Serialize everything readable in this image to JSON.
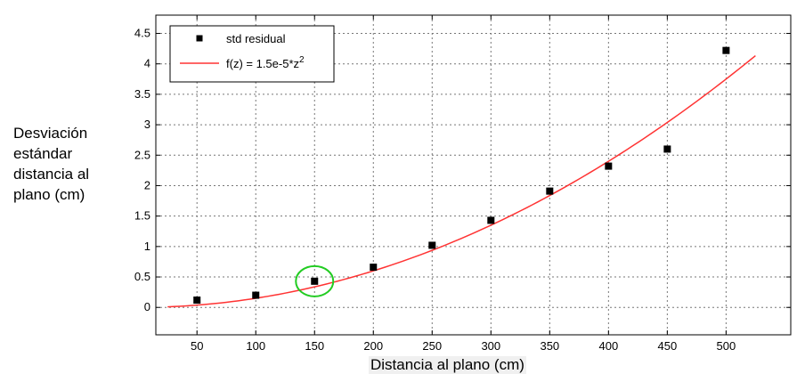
{
  "chart_data": {
    "type": "scatter",
    "title": "",
    "xlabel": "Distancia al plano (cm)",
    "ylabel_lines": [
      "Desviación",
      "estándar",
      "distancia al",
      "plano (cm)"
    ],
    "xlim": [
      15,
      555
    ],
    "ylim": [
      -0.45,
      4.8
    ],
    "x_ticks": [
      50,
      100,
      150,
      200,
      250,
      300,
      350,
      400,
      450,
      500
    ],
    "y_ticks": [
      0,
      0.5,
      1,
      1.5,
      2,
      2.5,
      3,
      3.5,
      4,
      4.5
    ],
    "y_tick_labels": [
      "0",
      "0.5",
      "1",
      "1.5",
      "2",
      "2.5",
      "3",
      "3.5",
      "4",
      "4.5"
    ],
    "grid": true,
    "legend_position": "top-left",
    "series": [
      {
        "name": "std residual",
        "kind": "scatter",
        "marker": "square",
        "color": "#000000",
        "x": [
          50,
          100,
          150,
          200,
          250,
          300,
          350,
          400,
          450,
          500
        ],
        "y": [
          0.12,
          0.2,
          0.43,
          0.66,
          1.02,
          1.43,
          1.91,
          2.32,
          2.6,
          4.22
        ]
      },
      {
        "name": "f(z) = 1.5e-5*z",
        "name_superscript": "2",
        "kind": "line",
        "color": "#ff3333",
        "function": "1.5e-5*z^2",
        "coefficient": 1.5e-05,
        "x_range": [
          25,
          525
        ]
      }
    ],
    "highlight": {
      "x": 150,
      "y": 0.43,
      "color": "#22cc22",
      "shape": "ellipse"
    }
  }
}
